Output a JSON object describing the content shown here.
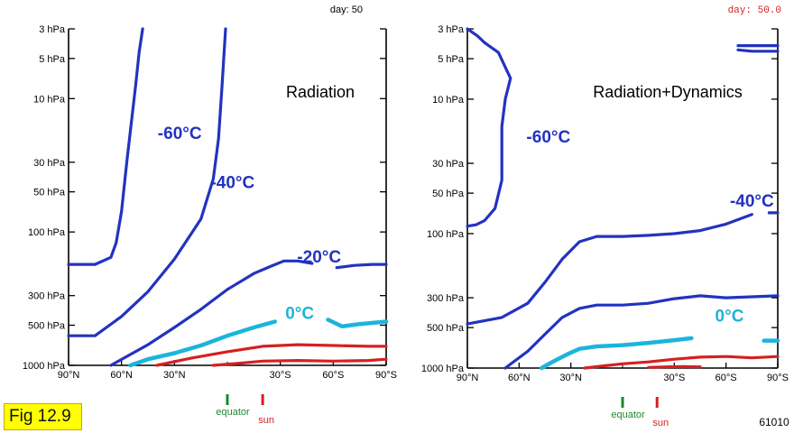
{
  "figure_label": "Fig 12.9",
  "figure_code": "61010",
  "colors": {
    "cold_isotherm": "#2233c0",
    "zero_isotherm": "#1cb4dc",
    "warm_isotherm": "#d62020",
    "equator_marker": "#1a8a2a",
    "sun_marker": "#d62020",
    "axis": "#000000",
    "day_text_left": "#000000",
    "day_text_right": "#d62020"
  },
  "chart_data": [
    {
      "type": "line",
      "title": "Radiation",
      "day_label": "day:",
      "day_value": "50",
      "x_ticks": [
        "90°N",
        "60°N",
        "30°N",
        "30°S",
        "60°S",
        "90°S"
      ],
      "x_tick_values": [
        90,
        60,
        30,
        -30,
        -60,
        -90
      ],
      "xlim": [
        90,
        -90
      ],
      "y_ticks": [
        "3 hPa",
        "5 hPa",
        "10 hPa",
        "30 hPa",
        "50 hPa",
        "100 hPa",
        "300 hPa",
        "500 hPa",
        "1000 hPa"
      ],
      "y_tick_values": [
        3,
        5,
        10,
        30,
        50,
        100,
        300,
        500,
        1000
      ],
      "ylim": [
        3,
        1000
      ],
      "y_scale": "log-inverted",
      "equator_label": "equator",
      "equator_lat": 0,
      "sun_label": "sun",
      "sun_lat": -20,
      "series": [
        {
          "name": "-60°C",
          "color_key": "cold_isotherm",
          "label_lat": 27,
          "label_p": 20,
          "x": [
            90,
            75,
            66,
            63,
            60,
            57,
            52,
            50,
            48
          ],
          "y": [
            175,
            175,
            155,
            120,
            70,
            30,
            8,
            4.5,
            3
          ]
        },
        {
          "name": "-40°C",
          "color_key": "cold_isotherm",
          "label_lat": -3,
          "label_p": 47,
          "x": [
            90,
            75,
            60,
            45,
            30,
            15,
            8,
            5,
            3,
            1
          ],
          "y": [
            600,
            600,
            430,
            280,
            160,
            80,
            40,
            20,
            8,
            3
          ]
        },
        {
          "name": "-20°C",
          "color_key": "cold_isotherm",
          "label_lat": -52,
          "label_p": 170,
          "x": [
            66,
            45,
            30,
            15,
            0,
            -15,
            -25,
            -32,
            -40,
            -48
          ],
          "y": [
            1000,
            700,
            520,
            380,
            270,
            205,
            180,
            165,
            165,
            172
          ],
          "x2": [
            -62,
            -72,
            -82,
            -90
          ],
          "y2": [
            185,
            178,
            175,
            175
          ]
        },
        {
          "name": "0°C",
          "color_key": "zero_isotherm",
          "label_lat": -41,
          "label_p": 450,
          "x": [
            55,
            45,
            30,
            15,
            0,
            -15,
            -27
          ],
          "y": [
            1000,
            900,
            810,
            710,
            600,
            520,
            470
          ],
          "x2": [
            -57,
            -65,
            -75,
            -90
          ],
          "y2": [
            455,
            510,
            490,
            470
          ]
        },
        {
          "name": "",
          "color_key": "warm_isotherm",
          "x": [
            40,
            20,
            0,
            -20,
            -40,
            -60,
            -80,
            -90
          ],
          "y": [
            1000,
            880,
            790,
            720,
            700,
            710,
            720,
            720
          ]
        },
        {
          "name": "",
          "color_key": "warm_isotherm",
          "x": [
            8,
            -5,
            -20,
            -40,
            -60,
            -80,
            -90
          ],
          "y": [
            1000,
            970,
            930,
            920,
            930,
            920,
            900
          ]
        }
      ]
    },
    {
      "type": "line",
      "title": "Radiation+Dynamics",
      "day_label": "day:",
      "day_value": "50.0",
      "x_ticks": [
        "90°N",
        "60°N",
        "30°N",
        "30°S",
        "60°S",
        "90°S"
      ],
      "x_tick_values": [
        90,
        60,
        30,
        -30,
        -60,
        -90
      ],
      "xlim": [
        90,
        -90
      ],
      "y_ticks": [
        "3 hPa",
        "5 hPa",
        "10 hPa",
        "30 hPa",
        "50 hPa",
        "100 hPa",
        "300 hPa",
        "500 hPa",
        "1000 hPa"
      ],
      "y_tick_values": [
        3,
        5,
        10,
        30,
        50,
        100,
        300,
        500,
        1000
      ],
      "ylim": [
        3,
        1000
      ],
      "y_scale": "log-inverted",
      "equator_label": "equator",
      "equator_lat": 0,
      "sun_label": "sun",
      "sun_lat": -20,
      "series": [
        {
          "name": "-60°C",
          "color_key": "cold_isotherm",
          "label_lat": 43,
          "label_p": 21,
          "x": [
            90,
            85,
            80,
            74,
            70,
            70,
            68,
            65,
            72,
            80,
            84,
            90
          ],
          "y": [
            88,
            86,
            80,
            65,
            40,
            16,
            10,
            7,
            4.5,
            3.8,
            3.4,
            3
          ],
          "x2": [
            -67,
            -75,
            -90
          ],
          "y2": [
            4,
            4,
            4
          ],
          "x3": [
            -67,
            -75,
            -90
          ],
          "y3": [
            4.3,
            4.4,
            4.4
          ]
        },
        {
          "name": "-40°C",
          "color_key": "cold_isotherm",
          "label_lat": -75,
          "label_p": 63,
          "x": [
            90,
            70,
            55,
            45,
            35,
            25,
            15,
            0,
            -15,
            -30,
            -45,
            -60,
            -75
          ],
          "y": [
            470,
            420,
            330,
            230,
            155,
            115,
            105,
            105,
            103,
            100,
            95,
            85,
            72
          ],
          "x2": [
            -85,
            -90
          ],
          "y2": [
            70,
            70
          ]
        },
        {
          "name": "",
          "color_key": "cold_isotherm",
          "x": [
            68,
            55,
            45,
            35,
            25,
            15,
            0,
            -15,
            -30,
            -45,
            -60,
            -75,
            -90
          ],
          "y": [
            1000,
            750,
            560,
            420,
            360,
            340,
            340,
            330,
            305,
            290,
            300,
            295,
            290
          ]
        },
        {
          "name": "0°C",
          "color_key": "zero_isotherm",
          "label_lat": -62,
          "label_p": 450,
          "x": [
            47,
            40,
            32,
            25,
            15,
            0,
            -15,
            -30,
            -40
          ],
          "y": [
            1000,
            890,
            790,
            720,
            690,
            675,
            650,
            620,
            600
          ],
          "x2": [
            -82,
            -90
          ],
          "y2": [
            625,
            625
          ]
        },
        {
          "name": "",
          "color_key": "warm_isotherm",
          "x": [
            22,
            10,
            0,
            -15,
            -30,
            -45,
            -60,
            -75,
            -90
          ],
          "y": [
            1000,
            960,
            930,
            900,
            860,
            830,
            820,
            840,
            820
          ]
        },
        {
          "name": "",
          "color_key": "warm_isotherm",
          "x": [
            -15,
            -25,
            -35,
            -45
          ],
          "y": [
            990,
            980,
            975,
            980
          ]
        }
      ]
    }
  ]
}
